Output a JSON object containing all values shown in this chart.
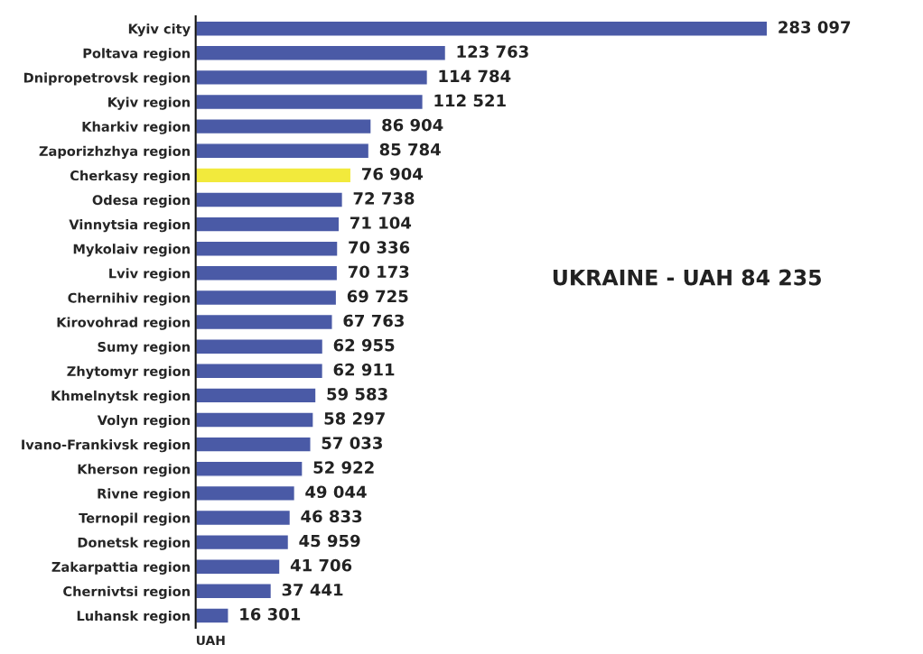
{
  "chart_data": {
    "type": "bar",
    "orientation": "horizontal",
    "categories": [
      "Kyiv city",
      "Poltava region",
      "Dnipropetrovsk region",
      "Kyiv region",
      "Kharkiv region",
      "Zaporizhzhya region",
      "Cherkasy region",
      "Odesa region",
      "Vinnytsia region",
      "Mykolaiv region",
      "Lviv region",
      "Chernihiv region",
      "Kirovohrad region",
      "Sumy region",
      "Zhytomyr region",
      "Khmelnytsk region",
      "Volyn region",
      "Ivano-Frankivsk region",
      "Kherson region",
      "Rivne region",
      "Ternopil region",
      "Donetsk region",
      "Zakarpattia region",
      "Chernivtsi region",
      "Luhansk region"
    ],
    "values": [
      283097,
      123763,
      114784,
      112521,
      86904,
      85784,
      76904,
      72738,
      71104,
      70336,
      70173,
      69725,
      67763,
      62955,
      62911,
      59583,
      58297,
      57033,
      52922,
      49044,
      46833,
      45959,
      41706,
      37441,
      16301
    ],
    "value_labels": [
      "283 097",
      "123 763",
      "114 784",
      "112 521",
      "86 904",
      "85 784",
      "76 904",
      "72 738",
      "71 104",
      "70 336",
      "70 173",
      "69 725",
      "67 763",
      "62 955",
      "62 911",
      "59 583",
      "58 297",
      "57 033",
      "52 922",
      "49 044",
      "46 833",
      "45 959",
      "41 706",
      "37 441",
      "16 301"
    ],
    "colors": [
      "#4a5aa6",
      "#4a5aa6",
      "#4a5aa6",
      "#4a5aa6",
      "#4a5aa6",
      "#4a5aa6",
      "#f2ea3c",
      "#4a5aa6",
      "#4a5aa6",
      "#4a5aa6",
      "#4a5aa6",
      "#4a5aa6",
      "#4a5aa6",
      "#4a5aa6",
      "#4a5aa6",
      "#4a5aa6",
      "#4a5aa6",
      "#4a5aa6",
      "#4a5aa6",
      "#4a5aa6",
      "#4a5aa6",
      "#4a5aa6",
      "#4a5aa6",
      "#4a5aa6",
      "#4a5aa6"
    ],
    "xlabel": "UAH",
    "annotations": [
      "UKRAINE - UAH 84 235"
    ],
    "grid": false,
    "legend": false
  }
}
